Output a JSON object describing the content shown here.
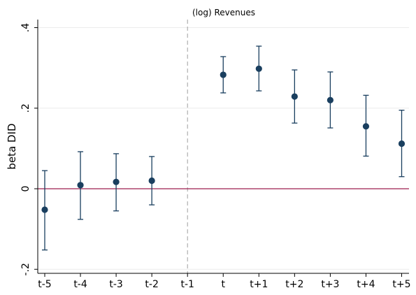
{
  "chart_data": {
    "type": "scatter",
    "subtype": "coefficient plot with confidence interval bars",
    "title": "(log) Revenues",
    "xlabel": "",
    "ylabel": "beta DID",
    "categories": [
      "t-5",
      "t-4",
      "t-3",
      "t-2",
      "t-1",
      "t",
      "t+1",
      "t+2",
      "t+3",
      "t+4",
      "t+5"
    ],
    "series": [
      {
        "estimate": [
          -0.052,
          0.009,
          0.017,
          0.02,
          null,
          0.283,
          0.298,
          0.229,
          0.22,
          0.155,
          0.112
        ],
        "ci_low": [
          -0.152,
          -0.076,
          -0.055,
          -0.04,
          null,
          0.238,
          0.243,
          0.163,
          0.151,
          0.081,
          0.03
        ],
        "ci_high": [
          0.045,
          0.092,
          0.087,
          0.08,
          null,
          0.328,
          0.354,
          0.295,
          0.29,
          0.232,
          0.195
        ]
      }
    ],
    "y_ticks": [
      -0.2,
      0,
      0.2,
      0.4
    ],
    "y_tick_labels": [
      "-.2",
      "0",
      ".2",
      ".4"
    ],
    "ylim": [
      -0.21,
      0.42
    ],
    "reference_line": {
      "y": 0,
      "color": "#9e1e4f"
    },
    "event_line": {
      "category": "t-1",
      "style": "dashed",
      "color": "#a0a0a0"
    },
    "grid": true,
    "legend": "none",
    "colors": {
      "marker": "#1a3f5f",
      "gridline": "#ececec",
      "axis": "#000000"
    }
  }
}
